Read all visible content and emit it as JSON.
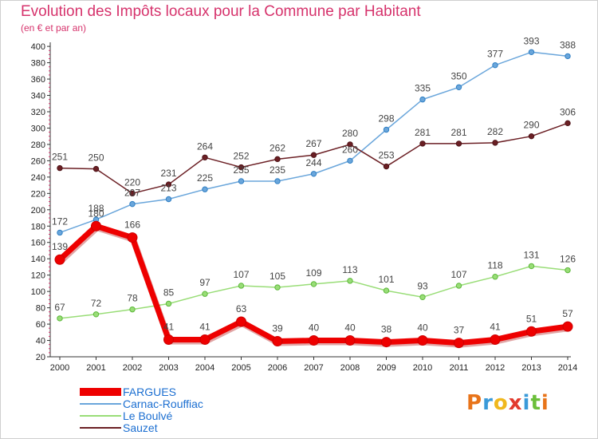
{
  "title": "Evolution des Impôts locaux pour la Commune par Habitant",
  "subtitle": "(en € et par an)",
  "chart_data": {
    "type": "line",
    "title": "Evolution des Impôts locaux pour la Commune par Habitant",
    "subtitle": "(en € et par an)",
    "xlabel": "",
    "ylabel": "",
    "x": [
      "2000",
      "2001",
      "2002",
      "2003",
      "2004",
      "2005",
      "2006",
      "2007",
      "2008",
      "2009",
      "2010",
      "2011",
      "2012",
      "2013",
      "2014"
    ],
    "yticks": [
      20,
      40,
      60,
      80,
      100,
      120,
      140,
      160,
      180,
      200,
      220,
      240,
      260,
      280,
      300,
      320,
      340,
      360,
      380,
      400
    ],
    "ylim": [
      20,
      405
    ],
    "grid": false,
    "legend_position": "bottom-left",
    "series": [
      {
        "name": "FARGUES",
        "color": "#ee0000",
        "values": [
          139,
          180,
          166,
          41,
          41,
          63,
          39,
          40,
          40,
          38,
          40,
          37,
          41,
          51,
          57
        ]
      },
      {
        "name": "Carnac-Rouffiac",
        "color": "#6aa6db",
        "values": [
          172,
          188,
          207,
          213,
          225,
          235,
          235,
          244,
          260,
          298,
          335,
          350,
          377,
          393,
          388
        ]
      },
      {
        "name": "Le Boulvé",
        "color": "#99dd77",
        "values": [
          67,
          72,
          78,
          85,
          97,
          107,
          105,
          109,
          113,
          101,
          93,
          107,
          118,
          131,
          126
        ]
      },
      {
        "name": "Sauzet",
        "color": "#6b1f24",
        "values": [
          251,
          250,
          220,
          231,
          264,
          252,
          262,
          267,
          280,
          253,
          281,
          281,
          282,
          290,
          306
        ]
      }
    ]
  },
  "logo": {
    "text": "Proxiti",
    "letters": [
      "P",
      "r",
      "o",
      "x",
      "i",
      "t",
      "i"
    ],
    "colors": [
      "#e8741a",
      "#3a9ad9",
      "#f0b81e",
      "#e23a2d",
      "#3a9ad9",
      "#6bbf3a",
      "#e8741a"
    ]
  }
}
